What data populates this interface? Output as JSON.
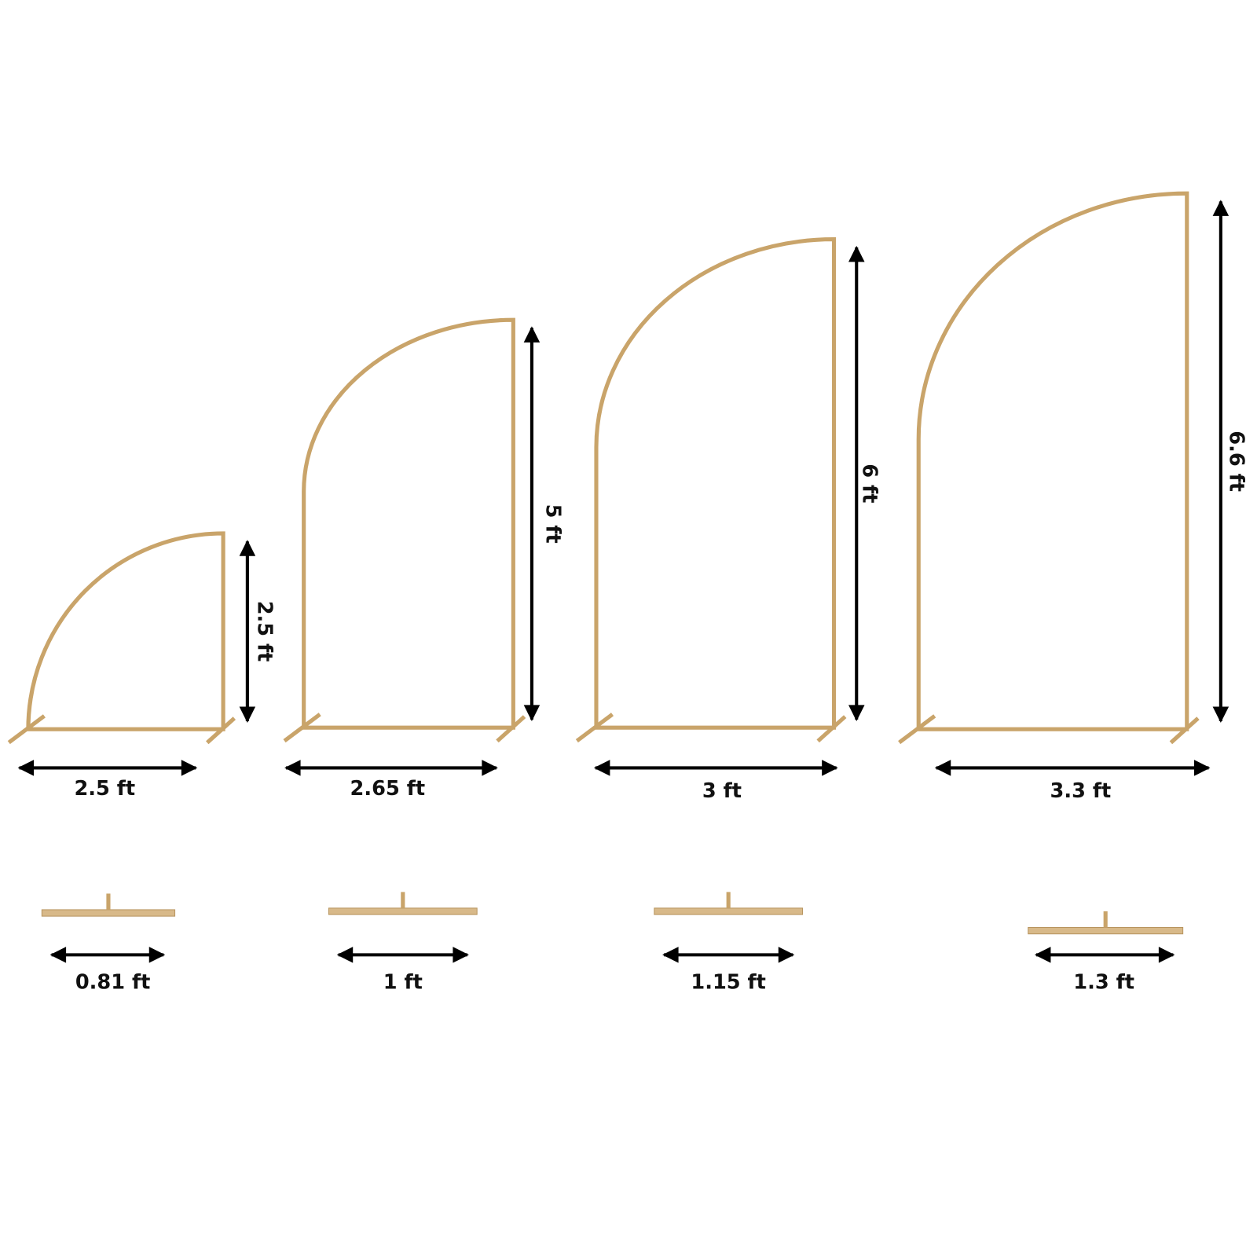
{
  "frames": [
    {
      "height": "2.5 ft",
      "width": "2.5 ft",
      "base": "0.81 ft"
    },
    {
      "height": "5 ft",
      "width": "2.65 ft",
      "base": "1 ft"
    },
    {
      "height": "6 ft",
      "width": "3 ft",
      "base": "1.15 ft"
    },
    {
      "height": "6.6 ft",
      "width": "3.3 ft",
      "base": "1.3 ft"
    }
  ]
}
